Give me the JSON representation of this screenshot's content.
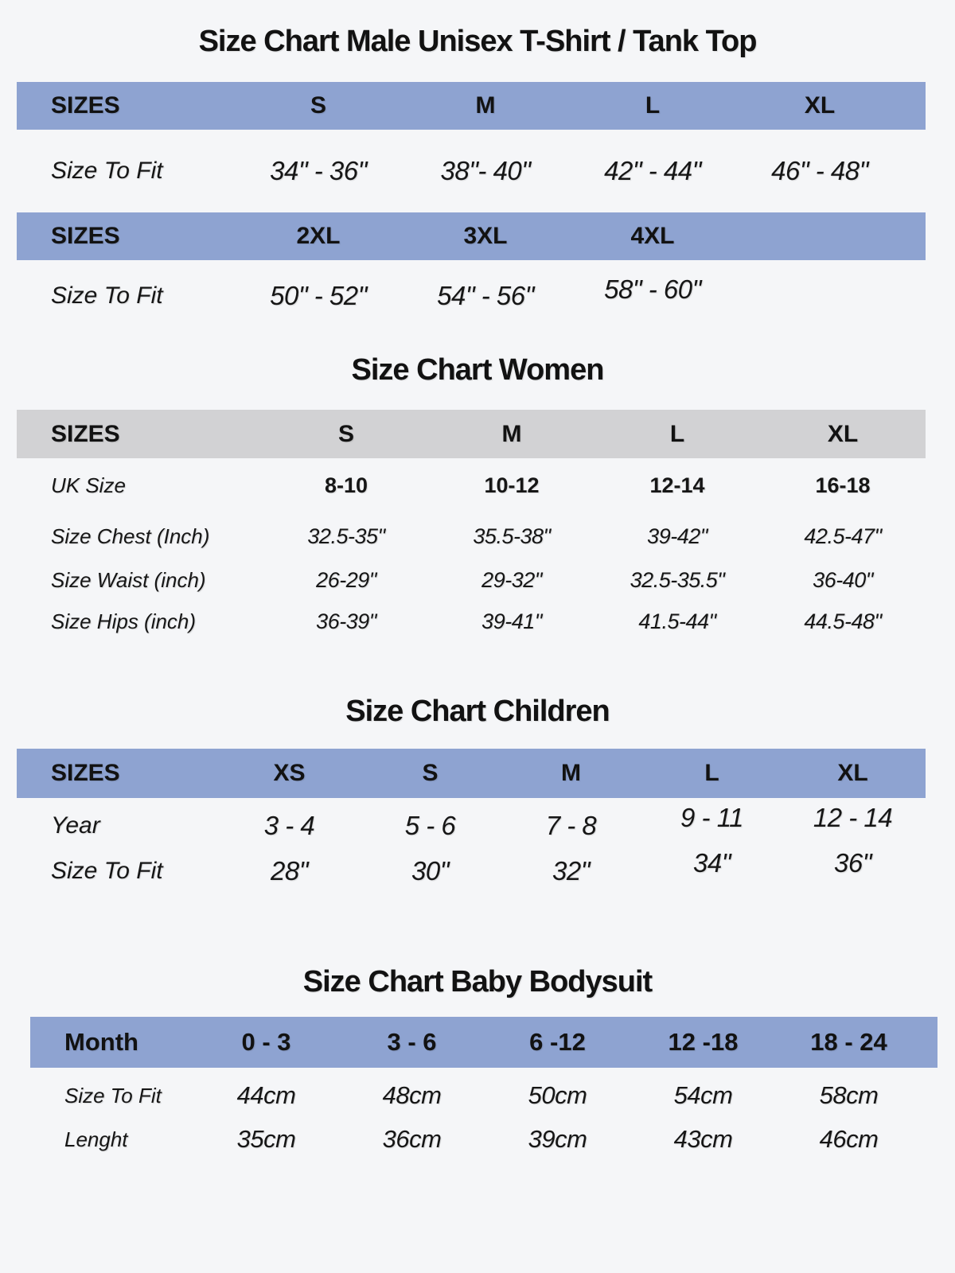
{
  "page": {
    "background": "#f5f6f8",
    "text_color": "#161616",
    "accent_blue": "#8ea3d1",
    "accent_gray": "#d2d2d4"
  },
  "male": {
    "title": "Size Chart Male Unisex T-Shirt / Tank Top",
    "header1": {
      "label": "SIZES",
      "cols": [
        "S",
        "M",
        "L",
        "XL"
      ]
    },
    "fit1": {
      "label": "Size To Fit",
      "values": [
        "34\" - 36\"",
        "38\"- 40\"",
        "42\" - 44\"",
        "46\" - 48\""
      ]
    },
    "header2": {
      "label": "SIZES",
      "cols": [
        "2XL",
        "3XL",
        "4XL"
      ]
    },
    "fit2": {
      "label": "Size To Fit",
      "values": [
        "50\" - 52\"",
        "54\" - 56\"",
        "58\" - 60\""
      ]
    }
  },
  "women": {
    "title": "Size Chart Women",
    "header": {
      "label": "SIZES",
      "cols": [
        "S",
        "M",
        "L",
        "XL"
      ]
    },
    "rows": [
      {
        "label": "UK Size",
        "values": [
          "8-10",
          "10-12",
          "12-14",
          "16-18"
        ]
      },
      {
        "label": "Size Chest (Inch)",
        "values": [
          "32.5-35\"",
          "35.5-38\"",
          "39-42\"",
          "42.5-47\""
        ]
      },
      {
        "label": "Size Waist (inch)",
        "values": [
          "26-29\"",
          "29-32\"",
          "32.5-35.5\"",
          "36-40\""
        ]
      },
      {
        "label": "Size Hips (inch)",
        "values": [
          "36-39\"",
          "39-41\"",
          "41.5-44\"",
          "44.5-48\""
        ]
      }
    ]
  },
  "children": {
    "title": "Size Chart Children",
    "header": {
      "label": "SIZES",
      "cols": [
        "XS",
        "S",
        "M",
        "L",
        "XL"
      ]
    },
    "rows": [
      {
        "label": "Year",
        "values": [
          "3 - 4",
          "5 - 6",
          "7 - 8",
          "9 - 11",
          "12 - 14"
        ]
      },
      {
        "label": "Size To Fit",
        "values": [
          "28\"",
          "30\"",
          "32\"",
          "34\"",
          "36\""
        ]
      }
    ]
  },
  "baby": {
    "title": "Size Chart Baby Bodysuit",
    "header": {
      "label": "Month",
      "cols": [
        "0 - 3",
        "3 - 6",
        "6 -12",
        "12 -18",
        "18 - 24"
      ]
    },
    "rows": [
      {
        "label": "Size To Fit",
        "values": [
          "44cm",
          "48cm",
          "50cm",
          "54cm",
          "58cm"
        ]
      },
      {
        "label": "Lenght",
        "values": [
          "35cm",
          "36cm",
          "39cm",
          "43cm",
          "46cm"
        ]
      }
    ]
  }
}
